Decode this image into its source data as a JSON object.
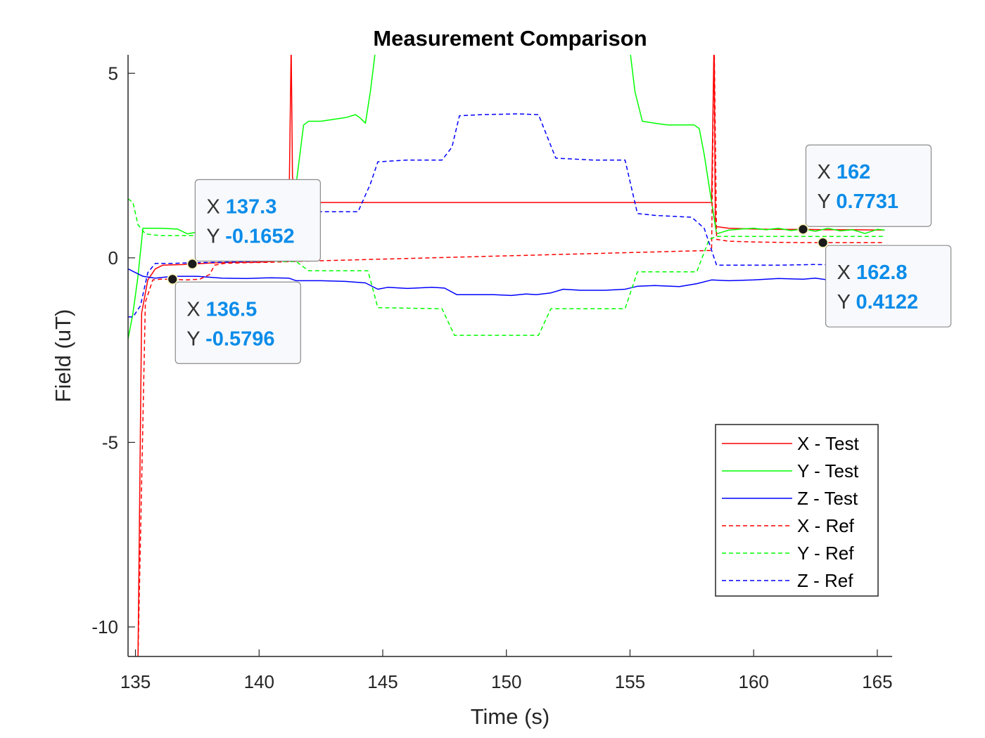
{
  "chart_data": {
    "type": "line",
    "title": "Measurement Comparison",
    "xlabel": "Time (s)",
    "ylabel": "Field (uT)",
    "xlim": [
      134.7,
      165.6
    ],
    "ylim": [
      -10.8,
      5.5
    ],
    "xticks": [
      135,
      140,
      145,
      150,
      155,
      160,
      165
    ],
    "xtick_labels": [
      "135",
      "140",
      "145",
      "150",
      "155",
      "160",
      "165"
    ],
    "yticks": [
      5,
      0,
      -5,
      -10
    ],
    "ytick_labels": [
      "5",
      "0",
      "-5",
      "-10"
    ],
    "grid": false,
    "legend_position": "lower-right",
    "series": [
      {
        "name": "X - Test",
        "color": "#ff0000",
        "dash": "solid",
        "points": [
          [
            135.1,
            -10.9
          ],
          [
            135.25,
            -1.5
          ],
          [
            135.5,
            -0.6
          ],
          [
            135.8,
            -0.3
          ],
          [
            136.1,
            -0.2
          ],
          [
            137.0,
            -0.18
          ],
          [
            137.3,
            -0.17
          ],
          [
            138.0,
            -0.14
          ],
          [
            139.0,
            -0.12
          ],
          [
            139.8,
            -0.12
          ],
          [
            140.5,
            -0.1
          ],
          [
            141.0,
            -0.05
          ],
          [
            141.2,
            0.8
          ],
          [
            141.3,
            6.0
          ],
          [
            141.3,
            5.5
          ],
          [
            141.35,
            2.2
          ],
          [
            141.5,
            1.5
          ],
          [
            158.3,
            1.5
          ],
          [
            158.4,
            6.0
          ],
          [
            158.45,
            0.85
          ],
          [
            159.0,
            0.8
          ],
          [
            160.0,
            0.78
          ],
          [
            161.0,
            0.77
          ],
          [
            162.0,
            0.77
          ],
          [
            163.0,
            0.76
          ],
          [
            164.0,
            0.76
          ],
          [
            165.3,
            0.75
          ]
        ]
      },
      {
        "name": "Y - Test",
        "color": "#00ff00",
        "dash": "solid",
        "points": [
          [
            134.7,
            -2.2
          ],
          [
            134.9,
            -1.5
          ],
          [
            135.1,
            -0.5
          ],
          [
            135.3,
            0.8
          ],
          [
            136.0,
            0.8
          ],
          [
            136.7,
            0.78
          ],
          [
            137.1,
            0.65
          ],
          [
            137.5,
            0.7
          ],
          [
            137.9,
            0.8
          ],
          [
            138.3,
            0.62
          ],
          [
            139.0,
            0.6
          ],
          [
            141.3,
            0.6
          ],
          [
            141.5,
            2.0
          ],
          [
            141.8,
            3.6
          ],
          [
            142.0,
            3.7
          ],
          [
            142.5,
            3.7
          ],
          [
            143.0,
            3.75
          ],
          [
            143.5,
            3.8
          ],
          [
            143.9,
            3.88
          ],
          [
            144.1,
            3.78
          ],
          [
            144.3,
            3.65
          ],
          [
            144.5,
            4.5
          ],
          [
            144.7,
            5.6
          ],
          [
            155.0,
            5.6
          ],
          [
            155.2,
            4.5
          ],
          [
            155.5,
            3.7
          ],
          [
            156.0,
            3.65
          ],
          [
            156.5,
            3.6
          ],
          [
            157.0,
            3.6
          ],
          [
            157.6,
            3.6
          ],
          [
            157.8,
            3.5
          ],
          [
            158.0,
            2.8
          ],
          [
            158.5,
            0.65
          ],
          [
            159.0,
            0.75
          ],
          [
            159.5,
            0.78
          ],
          [
            160.0,
            0.8
          ],
          [
            160.5,
            0.76
          ],
          [
            161.0,
            0.8
          ],
          [
            161.5,
            0.74
          ],
          [
            162.0,
            0.78
          ],
          [
            162.5,
            0.72
          ],
          [
            163.0,
            0.8
          ],
          [
            163.5,
            0.73
          ],
          [
            164.0,
            0.76
          ],
          [
            164.5,
            0.66
          ],
          [
            165.0,
            0.77
          ],
          [
            165.3,
            0.75
          ]
        ]
      },
      {
        "name": "Z - Test",
        "color": "#0000ff",
        "dash": "solid",
        "points": [
          [
            134.7,
            -0.3
          ],
          [
            135.0,
            -0.4
          ],
          [
            135.3,
            -0.5
          ],
          [
            135.8,
            -0.55
          ],
          [
            136.5,
            -0.5
          ],
          [
            137.5,
            -0.5
          ],
          [
            138.5,
            -0.55
          ],
          [
            139.5,
            -0.56
          ],
          [
            140.5,
            -0.54
          ],
          [
            141.2,
            -0.55
          ],
          [
            141.5,
            -0.62
          ],
          [
            142.5,
            -0.62
          ],
          [
            143.5,
            -0.64
          ],
          [
            144.3,
            -0.68
          ],
          [
            144.8,
            -0.85
          ],
          [
            145.2,
            -0.8
          ],
          [
            146.0,
            -0.83
          ],
          [
            147.0,
            -0.8
          ],
          [
            147.5,
            -0.82
          ],
          [
            148.0,
            -1.0
          ],
          [
            148.5,
            -1.0
          ],
          [
            149.5,
            -1.0
          ],
          [
            150.2,
            -1.02
          ],
          [
            150.8,
            -0.98
          ],
          [
            151.2,
            -1.0
          ],
          [
            151.8,
            -0.95
          ],
          [
            152.3,
            -0.85
          ],
          [
            153.0,
            -0.88
          ],
          [
            154.0,
            -0.88
          ],
          [
            154.8,
            -0.85
          ],
          [
            155.3,
            -0.77
          ],
          [
            156.0,
            -0.75
          ],
          [
            157.0,
            -0.78
          ],
          [
            157.7,
            -0.7
          ],
          [
            158.3,
            -0.6
          ],
          [
            159.0,
            -0.62
          ],
          [
            160.0,
            -0.6
          ],
          [
            161.0,
            -0.56
          ],
          [
            162.0,
            -0.58
          ],
          [
            162.5,
            -0.55
          ],
          [
            163.0,
            -0.6
          ],
          [
            164.0,
            -0.58
          ],
          [
            165.3,
            -0.56
          ]
        ]
      },
      {
        "name": "X - Ref",
        "color": "#ff0000",
        "dash": "dashed",
        "points": [
          [
            135.1,
            -10.9
          ],
          [
            135.4,
            -1.2
          ],
          [
            135.7,
            -0.6
          ],
          [
            136.0,
            -0.58
          ],
          [
            136.5,
            -0.58
          ],
          [
            137.0,
            -0.6
          ],
          [
            137.6,
            -0.58
          ],
          [
            138.0,
            -0.45
          ],
          [
            138.2,
            -0.2
          ],
          [
            138.6,
            -0.15
          ],
          [
            139.5,
            -0.13
          ],
          [
            140.5,
            -0.12
          ],
          [
            141.3,
            -0.1
          ],
          [
            158.3,
            0.2
          ],
          [
            158.4,
            6.0
          ],
          [
            158.5,
            0.5
          ],
          [
            159.0,
            0.45
          ],
          [
            160.0,
            0.43
          ],
          [
            161.0,
            0.42
          ],
          [
            162.0,
            0.41
          ],
          [
            163.0,
            0.41
          ],
          [
            164.0,
            0.41
          ],
          [
            165.3,
            0.41
          ]
        ]
      },
      {
        "name": "Y - Ref",
        "color": "#00ff00",
        "dash": "dashed",
        "points": [
          [
            134.7,
            1.6
          ],
          [
            134.9,
            1.5
          ],
          [
            135.1,
            0.9
          ],
          [
            135.4,
            0.65
          ],
          [
            136.0,
            0.6
          ],
          [
            137.0,
            0.6
          ],
          [
            137.6,
            0.6
          ],
          [
            138.0,
            0.2
          ],
          [
            138.4,
            -0.05
          ],
          [
            139.5,
            -0.05
          ],
          [
            141.0,
            -0.1
          ],
          [
            141.5,
            -0.1
          ],
          [
            142.0,
            -0.35
          ],
          [
            144.4,
            -0.35
          ],
          [
            144.8,
            -1.35
          ],
          [
            147.4,
            -1.38
          ],
          [
            147.9,
            -2.1
          ],
          [
            151.3,
            -2.1
          ],
          [
            151.8,
            -1.38
          ],
          [
            154.8,
            -1.38
          ],
          [
            155.3,
            -0.38
          ],
          [
            157.7,
            -0.38
          ],
          [
            158.2,
            0.5
          ],
          [
            158.5,
            0.58
          ],
          [
            159.5,
            0.58
          ],
          [
            161.0,
            0.58
          ],
          [
            162.5,
            0.58
          ],
          [
            164.0,
            0.58
          ],
          [
            165.3,
            0.58
          ]
        ]
      },
      {
        "name": "Z - Ref",
        "color": "#0000ff",
        "dash": "dashed",
        "points": [
          [
            134.7,
            -1.6
          ],
          [
            134.9,
            -1.6
          ],
          [
            135.2,
            -1.3
          ],
          [
            135.5,
            -0.4
          ],
          [
            135.8,
            -0.15
          ],
          [
            136.5,
            -0.15
          ],
          [
            137.5,
            -0.13
          ],
          [
            138.5,
            -0.12
          ],
          [
            139.5,
            -0.1
          ],
          [
            140.5,
            -0.08
          ],
          [
            141.3,
            -0.08
          ],
          [
            141.6,
            1.2
          ],
          [
            142.5,
            1.25
          ],
          [
            144.0,
            1.25
          ],
          [
            144.5,
            2.0
          ],
          [
            144.8,
            2.6
          ],
          [
            146.0,
            2.65
          ],
          [
            147.4,
            2.65
          ],
          [
            147.8,
            3.0
          ],
          [
            148.1,
            3.85
          ],
          [
            149.0,
            3.88
          ],
          [
            150.5,
            3.9
          ],
          [
            151.3,
            3.88
          ],
          [
            151.7,
            3.2
          ],
          [
            152.0,
            2.7
          ],
          [
            153.5,
            2.65
          ],
          [
            154.8,
            2.65
          ],
          [
            155.3,
            1.2
          ],
          [
            156.0,
            1.15
          ],
          [
            157.5,
            1.1
          ],
          [
            158.0,
            0.8
          ],
          [
            158.5,
            -0.2
          ],
          [
            159.5,
            -0.2
          ],
          [
            161.0,
            -0.2
          ],
          [
            162.5,
            -0.18
          ],
          [
            164.0,
            -0.2
          ],
          [
            165.3,
            -0.18
          ]
        ]
      }
    ],
    "datatips": [
      {
        "x_label": "X",
        "y_label": "Y",
        "x_text": "137.3",
        "y_text": "-0.1652",
        "x": 137.3,
        "y": -0.1652,
        "placement": "upper-right"
      },
      {
        "x_label": "X",
        "y_label": "Y",
        "x_text": "136.5",
        "y_text": "-0.5796",
        "x": 136.5,
        "y": -0.5796,
        "placement": "lower-right"
      },
      {
        "x_label": "X",
        "y_label": "Y",
        "x_text": "162",
        "y_text": "0.7731",
        "x": 162.0,
        "y": 0.7731,
        "placement": "upper-right"
      },
      {
        "x_label": "X",
        "y_label": "Y",
        "x_text": "162.8",
        "y_text": "0.4122",
        "x": 162.8,
        "y": 0.4122,
        "placement": "lower-right"
      }
    ]
  }
}
